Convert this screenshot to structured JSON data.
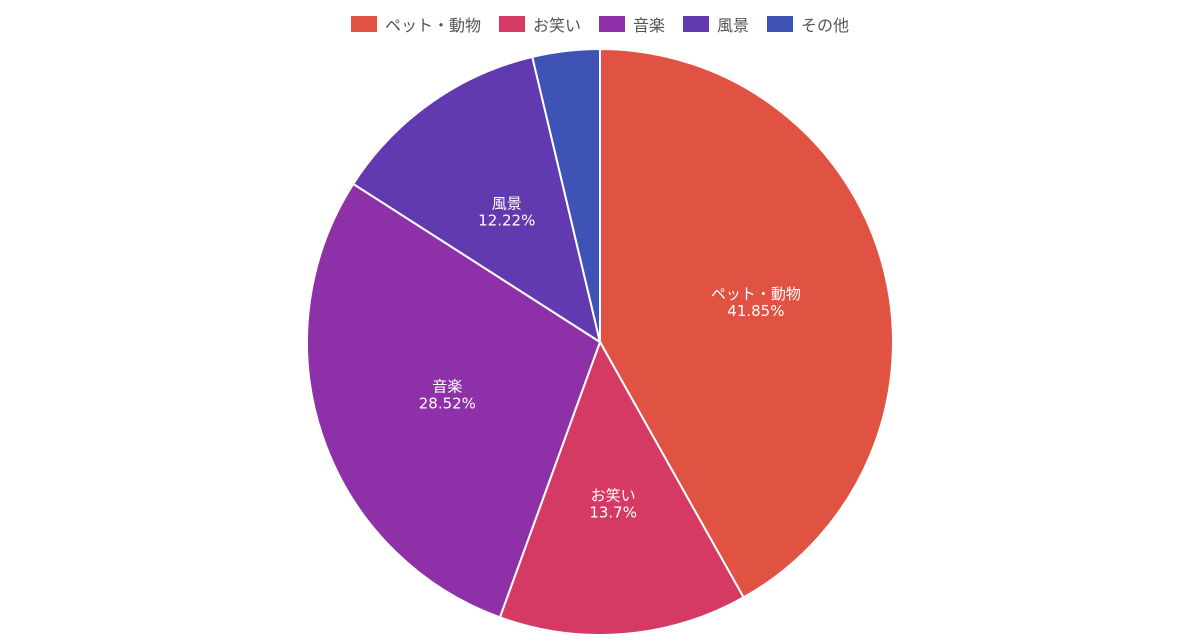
{
  "chart_data": {
    "type": "pie",
    "categories": [
      "ペット・動物",
      "お笑い",
      "音楽",
      "風景",
      "その他"
    ],
    "values": [
      41.85,
      13.7,
      28.52,
      12.22,
      3.71
    ],
    "value_labels": [
      "41.85%",
      "13.7%",
      "28.52%",
      "12.22%",
      ""
    ],
    "colors": [
      "#e05241",
      "#d53a65",
      "#8e31a8",
      "#623ab0",
      "#3f52b5"
    ],
    "legend_position": "top",
    "start_angle": "12 o'clock",
    "direction": "clockwise"
  }
}
